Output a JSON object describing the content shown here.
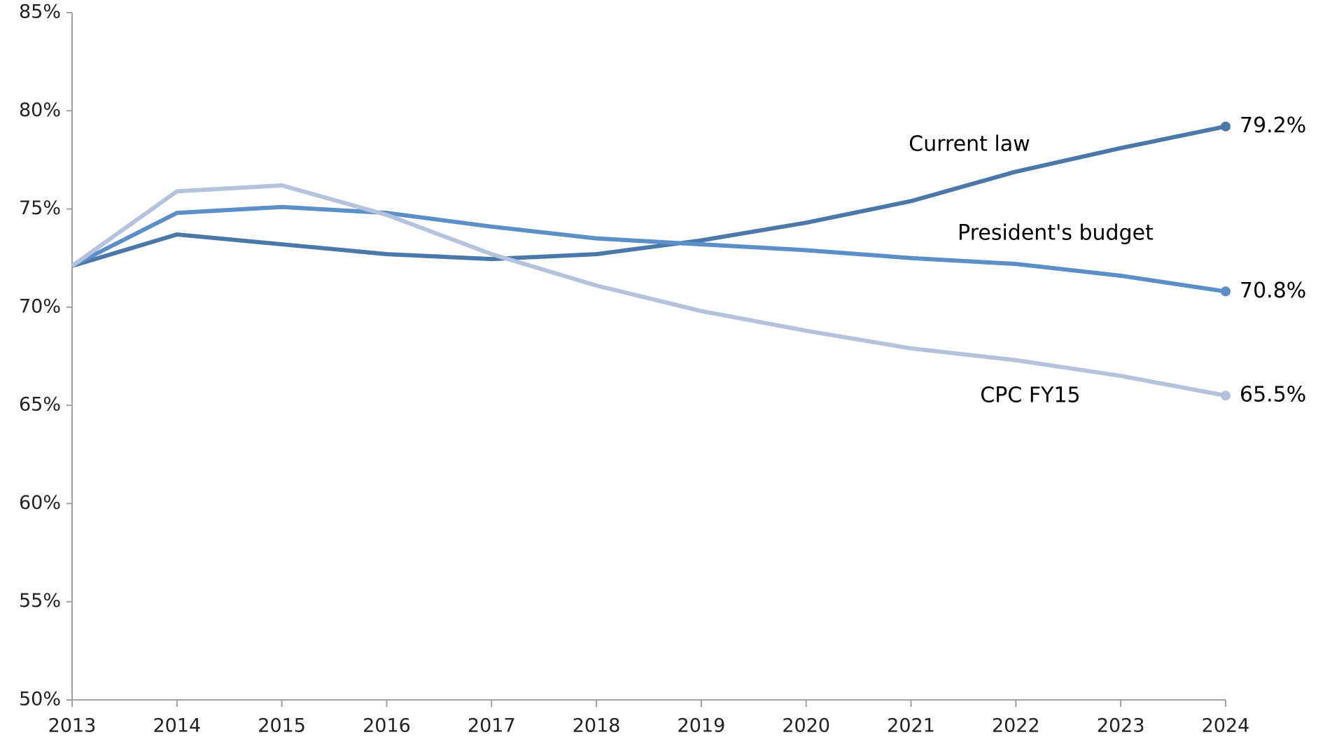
{
  "chart_data": {
    "type": "line",
    "categories": [
      "2013",
      "2014",
      "2015",
      "2016",
      "2017",
      "2018",
      "2019",
      "2020",
      "2021",
      "2022",
      "2023",
      "2024"
    ],
    "series": [
      {
        "name": "Current law",
        "color": "#4a78a8",
        "values": [
          72.1,
          73.7,
          73.2,
          72.7,
          72.45,
          72.7,
          73.4,
          74.3,
          75.4,
          76.9,
          78.1,
          79.2
        ],
        "value_labels": [
          null,
          null,
          null,
          null,
          null,
          null,
          null,
          null,
          null,
          null,
          null,
          "79.2%"
        ]
      },
      {
        "name": "President's budget",
        "color": "#5b8fc7",
        "values": [
          72.1,
          74.8,
          75.1,
          74.8,
          74.1,
          73.5,
          73.2,
          72.9,
          72.5,
          72.2,
          71.6,
          70.8
        ],
        "value_labels": [
          null,
          null,
          null,
          null,
          null,
          null,
          null,
          null,
          null,
          null,
          null,
          "70.8%"
        ]
      },
      {
        "name": "CPC FY15",
        "color": "#b3c3dc",
        "values": [
          72.1,
          75.9,
          76.2,
          74.7,
          72.7,
          71.1,
          69.8,
          68.8,
          67.9,
          67.3,
          66.5,
          65.5
        ],
        "value_labels": [
          null,
          null,
          null,
          null,
          null,
          null,
          null,
          null,
          null,
          null,
          null,
          "65.5%"
        ]
      }
    ],
    "ylim": [
      50,
      85
    ],
    "yticks": [
      {
        "value": 50,
        "label": "50%"
      },
      {
        "value": 55,
        "label": "55%"
      },
      {
        "value": 60,
        "label": "60%"
      },
      {
        "value": 65,
        "label": "65%"
      },
      {
        "value": 70,
        "label": "70%"
      },
      {
        "value": 75,
        "label": "75%"
      },
      {
        "value": 80,
        "label": "80%"
      },
      {
        "value": 85,
        "label": "85%"
      }
    ],
    "grid": false
  }
}
